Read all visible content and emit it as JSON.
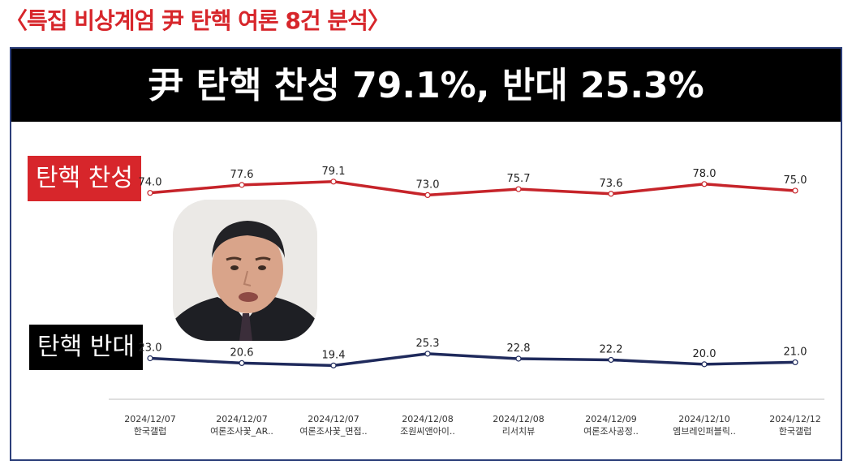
{
  "header": {
    "title": "〈특집 비상계엄 尹 탄핵 여론 8건 분석〉"
  },
  "banner": {
    "text": "尹 탄핵 찬성 79.1%, 반대 25.3%"
  },
  "colors": {
    "favor": "#c6242a",
    "oppose": "#1f2a5c",
    "banner_bg": "#000000",
    "accent_red": "#d7262b",
    "frame": "#2d3f7a"
  },
  "chart_data": {
    "type": "line",
    "categories": [
      [
        "2024/12/07",
        "한국갤럽"
      ],
      [
        "2024/12/07",
        "여론조사꽃_AR.."
      ],
      [
        "2024/12/07",
        "여론조사꽃_면접.."
      ],
      [
        "2024/12/08",
        "조원씨앤아이.."
      ],
      [
        "2024/12/08",
        "리서치뷰"
      ],
      [
        "2024/12/09",
        "여론조사공정.."
      ],
      [
        "2024/12/10",
        "엠브레인퍼블릭.."
      ],
      [
        "2024/12/12",
        "한국갤럽"
      ]
    ],
    "series": [
      {
        "name": "탄핵 찬성",
        "values": [
          74.0,
          77.6,
          79.1,
          73.0,
          75.7,
          73.6,
          78.0,
          75.0
        ],
        "labels": [
          "74.0",
          "77.6",
          "79.1",
          "73.0",
          "75.7",
          "73.6",
          "78.0",
          "75.0"
        ]
      },
      {
        "name": "탄핵 반대",
        "values": [
          23.0,
          20.6,
          19.4,
          25.3,
          22.8,
          22.2,
          20.0,
          21.0
        ],
        "labels": [
          "23.0",
          "20.6",
          "19.4",
          "25.3",
          "22.8",
          "22.2",
          "20.0",
          "21.0"
        ]
      }
    ],
    "grid": false
  }
}
